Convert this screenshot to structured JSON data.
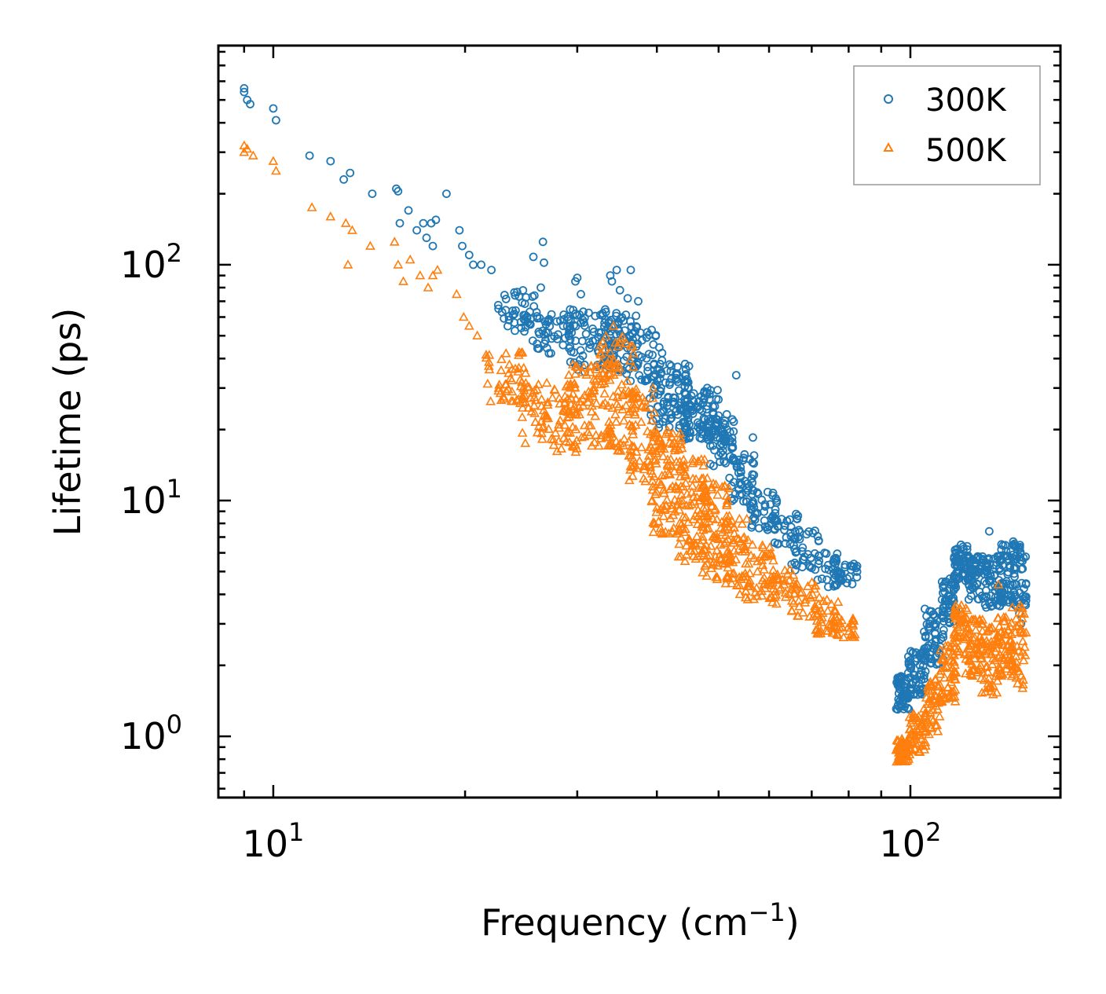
{
  "chart_data": {
    "type": "scatter",
    "title": "",
    "xlabel": "Frequency (cm",
    "xlabel_sup": "−1",
    "xlabel_close": ")",
    "ylabel": "Lifetime (ps)",
    "xscale": "log",
    "yscale": "log",
    "xlim": [
      8.2,
      172
    ],
    "ylim": [
      0.55,
      850
    ],
    "x_ticks": [
      {
        "base": "10",
        "exp": "1",
        "value": 10
      },
      {
        "base": "10",
        "exp": "2",
        "value": 100
      }
    ],
    "y_ticks": [
      {
        "base": "10",
        "exp": "0",
        "value": 1
      },
      {
        "base": "10",
        "exp": "1",
        "value": 10
      },
      {
        "base": "10",
        "exp": "2",
        "value": 100
      }
    ],
    "legend_position": "top-right",
    "series": [
      {
        "name": "300K",
        "marker": "circle",
        "color": "#1f77b4",
        "points": [
          [
            9.0,
            560
          ],
          [
            9.0,
            540
          ],
          [
            9.1,
            500
          ],
          [
            9.2,
            480
          ],
          [
            10.0,
            460
          ],
          [
            10.1,
            410
          ],
          [
            11.4,
            290
          ],
          [
            12.3,
            275
          ],
          [
            12.9,
            230
          ],
          [
            13.2,
            245
          ],
          [
            14.3,
            200
          ],
          [
            15.6,
            210
          ],
          [
            15.7,
            205
          ],
          [
            16.3,
            170
          ],
          [
            15.8,
            150
          ],
          [
            16.8,
            140
          ],
          [
            17.2,
            150
          ],
          [
            17.4,
            130
          ],
          [
            17.7,
            150
          ],
          [
            17.8,
            120
          ],
          [
            18.0,
            155
          ],
          [
            18.7,
            200
          ],
          [
            19.6,
            140
          ],
          [
            19.8,
            120
          ],
          [
            20.3,
            110
          ],
          [
            20.6,
            100
          ],
          [
            21.2,
            100
          ],
          [
            22.0,
            95
          ],
          [
            25.6,
            108
          ],
          [
            26.5,
            125
          ],
          [
            26.6,
            102
          ],
          [
            26.3,
            80
          ],
          [
            30.0,
            88
          ],
          [
            29.8,
            85
          ],
          [
            30.4,
            75
          ],
          [
            34.0,
            85
          ],
          [
            34.6,
            95
          ],
          [
            33.8,
            90
          ],
          [
            36.4,
            95
          ],
          [
            35.0,
            78
          ],
          [
            37.4,
            70
          ],
          [
            36.0,
            72
          ]
        ],
        "clusters": [
          {
            "x_range": [
              22.5,
              26.0
            ],
            "y_range": [
              52,
              78
            ],
            "n": 45
          },
          {
            "x_range": [
              25.5,
              31.0
            ],
            "y_range": [
              42,
              62
            ],
            "n": 55
          },
          {
            "x_range": [
              29.0,
              35.0
            ],
            "y_range": [
              35,
              65
            ],
            "n": 70
          },
          {
            "x_range": [
              33.0,
              37.5
            ],
            "y_range": [
              35,
              62
            ],
            "n": 55
          },
          {
            "x_range": [
              35.5,
              41.0
            ],
            "y_range": [
              32,
              55
            ],
            "n": 50
          },
          {
            "x_range": [
              39.0,
              45.0
            ],
            "y_range": [
              20,
              38
            ],
            "n": 90
          },
          {
            "x_range": [
              44.0,
              50.0
            ],
            "y_range": [
              18,
              30
            ],
            "n": 90
          },
          {
            "x_range": [
              48.0,
              53.0
            ],
            "y_range": [
              14,
              24
            ],
            "n": 60
          },
          {
            "x_range": [
              52.0,
              57.0
            ],
            "y_range": [
              9.5,
              16
            ],
            "n": 50
          },
          {
            "x_range": [
              56.0,
              62.0
            ],
            "y_range": [
              7.5,
              11
            ],
            "n": 40
          },
          {
            "x_range": [
              61.0,
              67.0
            ],
            "y_range": [
              6.5,
              9.0
            ],
            "n": 30
          },
          {
            "x_range": [
              65.0,
              72.0
            ],
            "y_range": [
              5.0,
              7.5
            ],
            "n": 35
          },
          {
            "x_range": [
              71.0,
              78.0
            ],
            "y_range": [
              4.3,
              6.2
            ],
            "n": 35
          },
          {
            "x_range": [
              77.0,
              82.5
            ],
            "y_range": [
              4.4,
              5.5
            ],
            "n": 20
          },
          {
            "x_range": [
              95.0,
              99.5
            ],
            "y_range": [
              1.3,
              1.85
            ],
            "n": 60
          },
          {
            "x_range": [
              99.0,
              106.0
            ],
            "y_range": [
              1.5,
              2.3
            ],
            "n": 60
          },
          {
            "x_range": [
              105.0,
              113.0
            ],
            "y_range": [
              2.0,
              3.5
            ],
            "n": 60
          },
          {
            "x_range": [
              112.0,
              118.0
            ],
            "y_range": [
              3.0,
              4.8
            ],
            "n": 50
          },
          {
            "x_range": [
              117.0,
              124.0
            ],
            "y_range": [
              4.5,
              6.5
            ],
            "n": 60
          },
          {
            "x_range": [
              123.0,
              132.0
            ],
            "y_range": [
              3.8,
              5.8
            ],
            "n": 60
          },
          {
            "x_range": [
              131.0,
              140.0
            ],
            "y_range": [
              3.5,
              5.8
            ],
            "n": 60
          },
          {
            "x_range": [
              138.0,
              146.0
            ],
            "y_range": [
              3.6,
              6.6
            ],
            "n": 50
          },
          {
            "x_range": [
              145.0,
              152.0
            ],
            "y_range": [
              3.0,
              6.5
            ],
            "n": 40
          }
        ],
        "extra_points": [
          [
            53.3,
            34
          ],
          [
            56.6,
            18.5
          ],
          [
            48.0,
            30
          ],
          [
            60.8,
            10.5
          ],
          [
            133.0,
            7.4
          ],
          [
            145.0,
            6.7
          ]
        ]
      },
      {
        "name": "500K",
        "marker": "triangle",
        "color": "#ff7f0e",
        "points": [
          [
            9.0,
            320
          ],
          [
            9.0,
            300
          ],
          [
            9.1,
            310
          ],
          [
            9.3,
            290
          ],
          [
            10.0,
            275
          ],
          [
            10.1,
            250
          ],
          [
            11.5,
            175
          ],
          [
            12.3,
            160
          ],
          [
            13.0,
            150
          ],
          [
            13.3,
            140
          ],
          [
            13.1,
            100
          ],
          [
            14.2,
            120
          ],
          [
            15.5,
            125
          ],
          [
            15.7,
            100
          ],
          [
            16.0,
            85
          ],
          [
            16.4,
            105
          ],
          [
            17.0,
            90
          ],
          [
            17.5,
            80
          ],
          [
            17.8,
            90
          ],
          [
            18.1,
            95
          ],
          [
            19.4,
            75
          ],
          [
            19.9,
            60
          ],
          [
            20.3,
            55
          ],
          [
            20.9,
            50
          ]
        ],
        "clusters": [
          {
            "x_range": [
              21.5,
              25.0
            ],
            "y_range": [
              25,
              45
            ],
            "n": 50
          },
          {
            "x_range": [
              24.5,
              30.0
            ],
            "y_range": [
              16,
              32
            ],
            "n": 80
          },
          {
            "x_range": [
              28.5,
              34.0
            ],
            "y_range": [
              17,
              38
            ],
            "n": 90
          },
          {
            "x_range": [
              32.5,
              37.0
            ],
            "y_range": [
              16,
              50
            ],
            "n": 80
          },
          {
            "x_range": [
              36.0,
              40.0
            ],
            "y_range": [
              12,
              30
            ],
            "n": 70
          },
          {
            "x_range": [
              39.0,
              44.0
            ],
            "y_range": [
              7,
              20
            ],
            "n": 100
          },
          {
            "x_range": [
              43.0,
              48.0
            ],
            "y_range": [
              5.5,
              15
            ],
            "n": 100
          },
          {
            "x_range": [
              47.0,
              52.0
            ],
            "y_range": [
              4.5,
              12
            ],
            "n": 80
          },
          {
            "x_range": [
              51.0,
              56.0
            ],
            "y_range": [
              4.0,
              9
            ],
            "n": 60
          },
          {
            "x_range": [
              55.0,
              61.0
            ],
            "y_range": [
              3.8,
              6.5
            ],
            "n": 50
          },
          {
            "x_range": [
              60.0,
              66.0
            ],
            "y_range": [
              3.6,
              5.2
            ],
            "n": 35
          },
          {
            "x_range": [
              65.0,
              72.0
            ],
            "y_range": [
              3.2,
              4.5
            ],
            "n": 35
          },
          {
            "x_range": [
              71.0,
              77.0
            ],
            "y_range": [
              2.6,
              3.8
            ],
            "n": 35
          },
          {
            "x_range": [
              76.0,
              82.0
            ],
            "y_range": [
              2.6,
              3.3
            ],
            "n": 25
          },
          {
            "x_range": [
              95.0,
              100.0
            ],
            "y_range": [
              0.78,
              0.98
            ],
            "n": 60
          },
          {
            "x_range": [
              99.5,
              106.0
            ],
            "y_range": [
              0.85,
              1.25
            ],
            "n": 50
          },
          {
            "x_range": [
              105.0,
              112.0
            ],
            "y_range": [
              1.0,
              1.8
            ],
            "n": 50
          },
          {
            "x_range": [
              111.0,
              118.0
            ],
            "y_range": [
              1.4,
              2.5
            ],
            "n": 50
          },
          {
            "x_range": [
              117.0,
              123.0
            ],
            "y_range": [
              2.2,
              3.6
            ],
            "n": 50
          },
          {
            "x_range": [
              122.0,
              130.0
            ],
            "y_range": [
              1.8,
              3.2
            ],
            "n": 55
          },
          {
            "x_range": [
              129.0,
              138.0
            ],
            "y_range": [
              1.5,
              3.0
            ],
            "n": 60
          },
          {
            "x_range": [
              137.0,
              145.0
            ],
            "y_range": [
              1.8,
              3.2
            ],
            "n": 50
          },
          {
            "x_range": [
              144.0,
              152.0
            ],
            "y_range": [
              1.6,
              3.6
            ],
            "n": 45
          }
        ],
        "extra_points": [
          [
            46.7,
            10
          ],
          [
            34.2,
            55
          ],
          [
            137.5,
            4.4
          ],
          [
            144.0,
            2.0
          ],
          [
            150.0,
            1.6
          ]
        ]
      }
    ]
  }
}
